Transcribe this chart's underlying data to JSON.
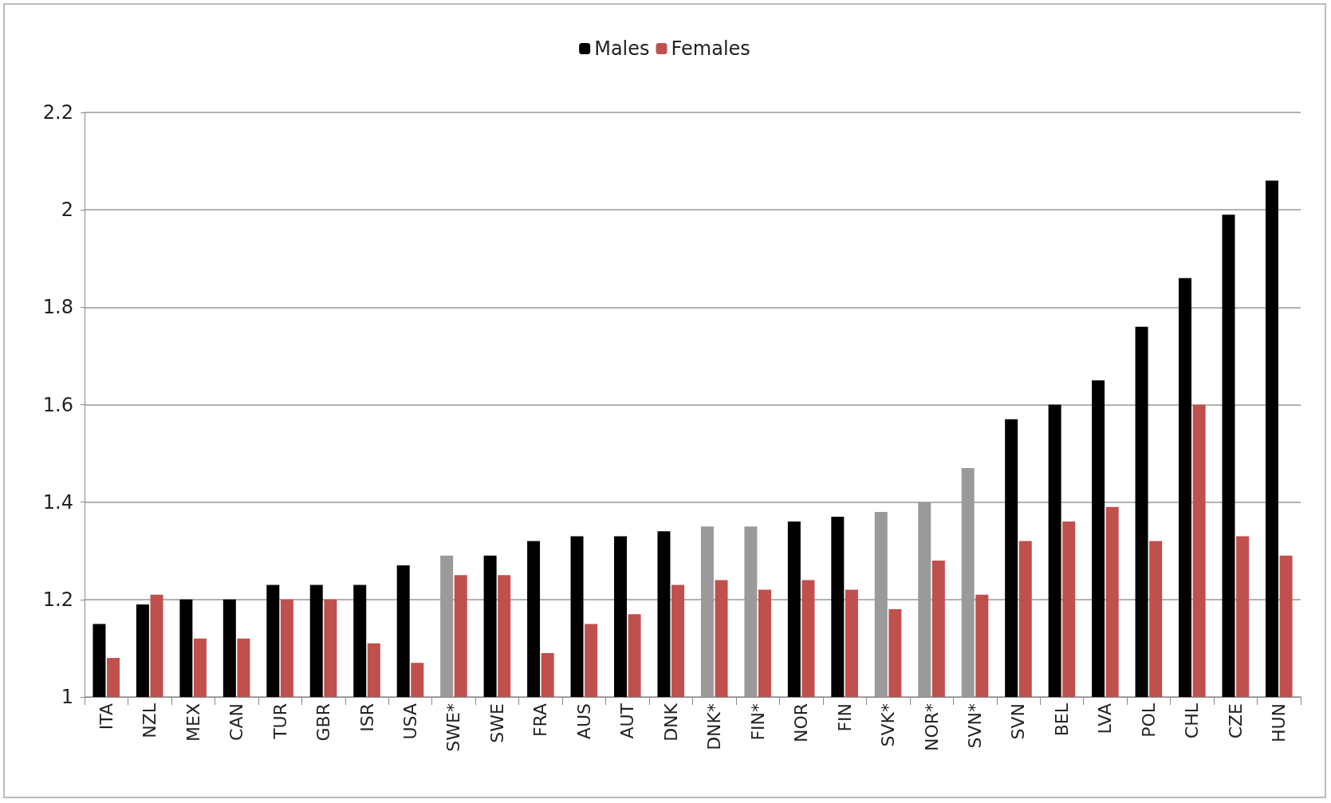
{
  "chart_data": {
    "type": "bar",
    "categories": [
      "ITA",
      "NZL",
      "MEX",
      "CAN",
      "TUR",
      "GBR",
      "ISR",
      "USA",
      "SWE*",
      "SWE",
      "FRA",
      "AUS",
      "AUT",
      "DNK",
      "DNK*",
      "FIN*",
      "NOR",
      "FIN",
      "SVK*",
      "NOR*",
      "SVN*",
      "SVN",
      "BEL",
      "LVA",
      "POL",
      "CHL",
      "CZE",
      "HUN"
    ],
    "series": [
      {
        "name": "Males",
        "color": "#000000",
        "colors": [
          "#000000",
          "#000000",
          "#000000",
          "#000000",
          "#000000",
          "#000000",
          "#000000",
          "#000000",
          "#9a9a9a",
          "#000000",
          "#000000",
          "#000000",
          "#000000",
          "#000000",
          "#9a9a9a",
          "#9a9a9a",
          "#000000",
          "#000000",
          "#9a9a9a",
          "#9a9a9a",
          "#9a9a9a",
          "#000000",
          "#000000",
          "#000000",
          "#000000",
          "#000000",
          "#000000",
          "#000000"
        ],
        "values": [
          1.15,
          1.19,
          1.2,
          1.2,
          1.23,
          1.23,
          1.23,
          1.27,
          1.29,
          1.29,
          1.32,
          1.33,
          1.33,
          1.34,
          1.35,
          1.35,
          1.36,
          1.37,
          1.38,
          1.4,
          1.47,
          1.57,
          1.6,
          1.65,
          1.76,
          1.86,
          1.99,
          2.06
        ]
      },
      {
        "name": "Females",
        "color": "#c0504d",
        "values": [
          1.08,
          1.21,
          1.12,
          1.12,
          1.2,
          1.2,
          1.11,
          1.07,
          1.25,
          1.25,
          1.09,
          1.15,
          1.17,
          1.23,
          1.24,
          1.22,
          1.24,
          1.22,
          1.18,
          1.28,
          1.21,
          1.32,
          1.36,
          1.39,
          1.32,
          1.6,
          1.33,
          1.29
        ]
      }
    ],
    "ylim": [
      1,
      2.2
    ],
    "yticks": [
      1,
      1.2,
      1.4,
      1.6,
      1.8,
      2,
      2.2
    ],
    "grid": "y",
    "legend": "top"
  }
}
